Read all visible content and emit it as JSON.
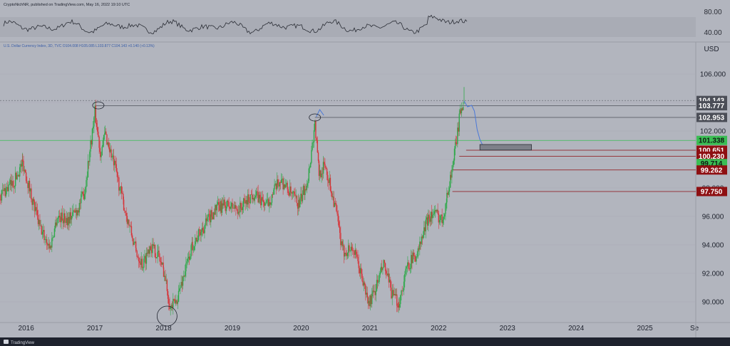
{
  "header": {
    "publisher_line": "CryptoNichNR, published on TradingView.com, May 16, 2022 19:10 UTC",
    "symbol_line": "U.S. Dollar Currency Index, 3D, TVC O104.008 H105.085 L103.877 C104.143 +0.140 (+0.13%)"
  },
  "footer": {
    "brand": "TradingView"
  },
  "colors": {
    "background": "#b2b5be",
    "up_candle": "#2fa84a",
    "down_candle": "#d6353a",
    "projection": "#4a78d8",
    "level_line": "#5c5f68",
    "red_level": "#8e0f12",
    "green_level": "#3bbd54",
    "dark_label": "#4b4e57"
  },
  "chart_data": [
    {
      "type": "line",
      "title": "",
      "ylabel": "",
      "ylim": [
        30,
        85
      ],
      "ticks": [
        "80.00",
        "40.00"
      ],
      "note": "oscillator sub-pane above the price pane"
    },
    {
      "type": "candlestick",
      "title": "U.S. Dollar Currency Index, 3D",
      "unit": "USD",
      "ylim": [
        88.6,
        108.2
      ],
      "y_ticks": [
        "106.000",
        "104.000",
        "102.000",
        "100.000",
        "98.000",
        "96.000",
        "94.000",
        "92.000",
        "90.000"
      ],
      "x_ticks": [
        "2016",
        "2017",
        "2018",
        "2019",
        "2020",
        "2021",
        "2022",
        "2023",
        "2024",
        "2025",
        "Se"
      ],
      "x_tick_years": [
        2016,
        2017,
        2018,
        2019,
        2020,
        2021,
        2022,
        2023,
        2024,
        2025,
        2025.72
      ],
      "x_range": [
        2015.62,
        2025.74
      ],
      "ohlc_last": {
        "open": 104.008,
        "high": 105.085,
        "low": 103.877,
        "close": 104.143,
        "change": "+0.140 (+0.13%)"
      },
      "price_anchors": [
        [
          2015.62,
          97.5
        ],
        [
          2015.82,
          98.4
        ],
        [
          2015.95,
          99.8
        ],
        [
          2016.1,
          97.0
        ],
        [
          2016.2,
          95.2
        ],
        [
          2016.35,
          93.8
        ],
        [
          2016.45,
          96.0
        ],
        [
          2016.6,
          95.8
        ],
        [
          2016.75,
          96.5
        ],
        [
          2016.85,
          97.8
        ],
        [
          2016.95,
          101.5
        ],
        [
          2017.0,
          103.3
        ],
        [
          2017.08,
          100.5
        ],
        [
          2017.15,
          101.8
        ],
        [
          2017.3,
          99.3
        ],
        [
          2017.42,
          96.8
        ],
        [
          2017.6,
          93.5
        ],
        [
          2017.7,
          92.6
        ],
        [
          2017.8,
          94.0
        ],
        [
          2017.92,
          93.3
        ],
        [
          2018.0,
          92.2
        ],
        [
          2018.1,
          89.6
        ],
        [
          2018.18,
          90.0
        ],
        [
          2018.3,
          92.0
        ],
        [
          2018.42,
          94.0
        ],
        [
          2018.6,
          95.4
        ],
        [
          2018.75,
          96.5
        ],
        [
          2018.9,
          96.8
        ],
        [
          2019.1,
          96.5
        ],
        [
          2019.3,
          97.6
        ],
        [
          2019.5,
          96.8
        ],
        [
          2019.7,
          98.6
        ],
        [
          2019.85,
          97.6
        ],
        [
          2019.97,
          96.8
        ],
        [
          2020.1,
          98.7
        ],
        [
          2020.2,
          102.5
        ],
        [
          2020.26,
          99.0
        ],
        [
          2020.35,
          99.6
        ],
        [
          2020.5,
          96.6
        ],
        [
          2020.6,
          93.5
        ],
        [
          2020.75,
          93.8
        ],
        [
          2020.85,
          92.3
        ],
        [
          2020.98,
          89.9
        ],
        [
          2021.05,
          90.5
        ],
        [
          2021.2,
          92.6
        ],
        [
          2021.33,
          90.4
        ],
        [
          2021.42,
          89.9
        ],
        [
          2021.55,
          92.6
        ],
        [
          2021.7,
          93.5
        ],
        [
          2021.85,
          96.0
        ],
        [
          2021.95,
          96.2
        ],
        [
          2022.05,
          95.8
        ],
        [
          2022.12,
          97.3
        ],
        [
          2022.18,
          99.0
        ],
        [
          2022.25,
          101.0
        ],
        [
          2022.32,
          103.5
        ],
        [
          2022.37,
          104.14
        ]
      ],
      "projection_path": [
        [
          2022.37,
          104.1
        ],
        [
          2022.42,
          103.7
        ],
        [
          2022.48,
          103.8
        ],
        [
          2022.52,
          103.4
        ],
        [
          2022.56,
          102.1
        ],
        [
          2022.6,
          101.4
        ],
        [
          2022.65,
          100.9
        ],
        [
          2022.72,
          100.7
        ],
        [
          2022.85,
          100.8
        ]
      ],
      "past_projection_path": [
        [
          2020.22,
          103.0
        ],
        [
          2020.27,
          103.5
        ],
        [
          2020.33,
          103.1
        ]
      ],
      "horizontal_levels": [
        {
          "price": 103.777,
          "label": "103.777",
          "style": "gray",
          "from": 2017.0,
          "to": 2022.35
        },
        {
          "price": 102.953,
          "label": "102.953",
          "style": "gray",
          "from": 2020.2,
          "to": 2025.74
        },
        {
          "price": 100.651,
          "label": "100.651",
          "style": "red",
          "from": 2022.4,
          "to": 2025.74
        },
        {
          "price": 100.23,
          "label": "100.230",
          "style": "red",
          "from": 2022.3,
          "to": 2025.74
        },
        {
          "price": 99.262,
          "label": "99.262",
          "style": "red",
          "from": 2022.2,
          "to": 2025.74
        },
        {
          "price": 97.75,
          "label": "97.750",
          "style": "red",
          "from": 2022.2,
          "to": 2025.74
        }
      ],
      "price_labels": [
        {
          "price": 104.143,
          "label": "104.143",
          "style": "dark"
        },
        {
          "price": 103.777,
          "label": "103.777",
          "style": "dark"
        },
        {
          "price": 102.953,
          "label": "102.953",
          "style": "dark"
        },
        {
          "price": 101.338,
          "label": "101.338",
          "style": "green"
        },
        {
          "price": 100.651,
          "label": "100.651",
          "style": "red"
        },
        {
          "price": 100.23,
          "label": "100.230",
          "style": "red"
        },
        {
          "price": 99.714,
          "label": "99.714",
          "style": "green"
        },
        {
          "price": 99.262,
          "label": "99.262",
          "style": "red"
        },
        {
          "price": 97.75,
          "label": "97.750",
          "style": "red"
        }
      ],
      "green_reference_line": 101.338,
      "dotted_reference_line": 104.143,
      "target_box": {
        "x0": 2022.6,
        "x1": 2023.35,
        "y0": 100.66,
        "y1": 101.05
      },
      "circle_markers": [
        {
          "x": 2017.05,
          "y": 103.8
        },
        {
          "x": 2020.2,
          "y": 102.95
        },
        {
          "x": 2018.05,
          "y": 89.0
        }
      ]
    }
  ]
}
